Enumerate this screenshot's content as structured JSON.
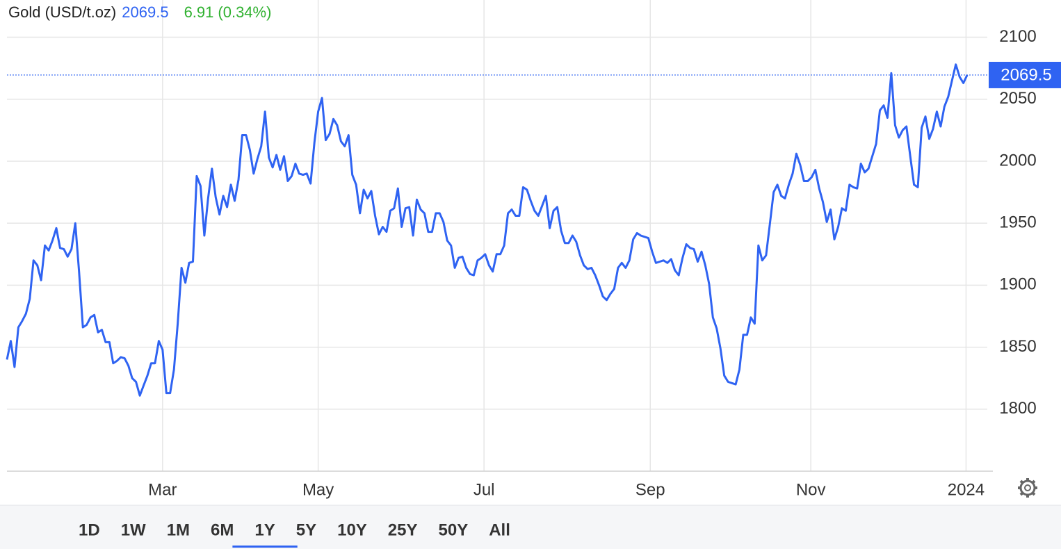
{
  "chart_data": {
    "type": "line",
    "title": "Gold (USD/t.oz)",
    "price": 2069.5,
    "change": 6.91,
    "change_percent": {
      "value": 0.34,
      "label": "(0.34%)"
    },
    "color": "#2f63f2",
    "price_color": "#2f63f2",
    "change_color": "#2fb12f",
    "values": [
      1840,
      1855,
      1834,
      1866,
      1871,
      1877,
      1889,
      1920,
      1916,
      1904,
      1932,
      1928,
      1936,
      1946,
      1930,
      1929,
      1923,
      1929,
      1950,
      1911,
      1866,
      1868,
      1874,
      1876,
      1862,
      1864,
      1854,
      1854,
      1837,
      1839,
      1842,
      1841,
      1835,
      1825,
      1822,
      1811,
      1819,
      1827,
      1837,
      1837,
      1855,
      1848,
      1813,
      1813,
      1832,
      1869,
      1914,
      1902,
      1918,
      1919,
      1988,
      1980,
      1940,
      1970,
      1994,
      1971,
      1957,
      1972,
      1963,
      1981,
      1968,
      1985,
      2021,
      2021,
      2009,
      1990,
      2002,
      2012,
      2040,
      2003,
      1995,
      2005,
      1993,
      2004,
      1984,
      1988,
      1998,
      1990,
      1989,
      1990,
      1982,
      2015,
      2040,
      2051,
      2017,
      2022,
      2034,
      2029,
      2016,
      2012,
      2021,
      1989,
      1981,
      1958,
      1977,
      1970,
      1976,
      1956,
      1941,
      1947,
      1943,
      1960,
      1962,
      1978,
      1947,
      1962,
      1963,
      1940,
      1969,
      1961,
      1958,
      1943,
      1943,
      1958,
      1958,
      1951,
      1936,
      1932,
      1914,
      1922,
      1923,
      1914,
      1909,
      1908,
      1920,
      1922,
      1925,
      1916,
      1911,
      1925,
      1925,
      1932,
      1958,
      1961,
      1956,
      1956,
      1979,
      1977,
      1968,
      1960,
      1956,
      1964,
      1972,
      1946,
      1960,
      1963,
      1944,
      1934,
      1934,
      1940,
      1935,
      1924,
      1916,
      1913,
      1914,
      1908,
      1900,
      1891,
      1888,
      1893,
      1897,
      1914,
      1918,
      1914,
      1920,
      1937,
      1942,
      1940,
      1939,
      1938,
      1927,
      1918,
      1919,
      1920,
      1918,
      1921,
      1912,
      1908,
      1922,
      1933,
      1930,
      1929,
      1919,
      1927,
      1916,
      1901,
      1874,
      1865,
      1849,
      1827,
      1822,
      1821,
      1820,
      1832,
      1860,
      1860,
      1874,
      1869,
      1932,
      1920,
      1924,
      1949,
      1975,
      1981,
      1972,
      1970,
      1981,
      1990,
      2006,
      1997,
      1984,
      1984,
      1987,
      1993,
      1978,
      1967,
      1951,
      1961,
      1937,
      1947,
      1962,
      1960,
      1981,
      1979,
      1978,
      1998,
      1991,
      1994,
      2004,
      2014,
      2041,
      2045,
      2035,
      2071,
      2029,
      2019,
      2025,
      2028,
      2004,
      1981,
      1979,
      2027,
      2036,
      2018,
      2026,
      2040,
      2028,
      2044,
      2052,
      2065,
      2078,
      2068,
      2063,
      2069.5
    ],
    "xlim": [
      0,
      258.3
    ],
    "xticks": [
      {
        "value": 41,
        "label": "Mar"
      },
      {
        "value": 82,
        "label": "May"
      },
      {
        "value": 125.7,
        "label": "Jul"
      },
      {
        "value": 169.5,
        "label": "Sep"
      },
      {
        "value": 211.8,
        "label": "Nov"
      },
      {
        "value": 252.7,
        "label": "2024"
      }
    ],
    "ylim": [
      1750,
      2130
    ],
    "yticks": [
      1800,
      1850,
      1900,
      1950,
      2000,
      2050,
      2100
    ],
    "grid": true,
    "range_buttons": [
      "1D",
      "1W",
      "1M",
      "6M",
      "1Y",
      "5Y",
      "10Y",
      "25Y",
      "50Y",
      "All"
    ],
    "selected_range": "1Y"
  }
}
